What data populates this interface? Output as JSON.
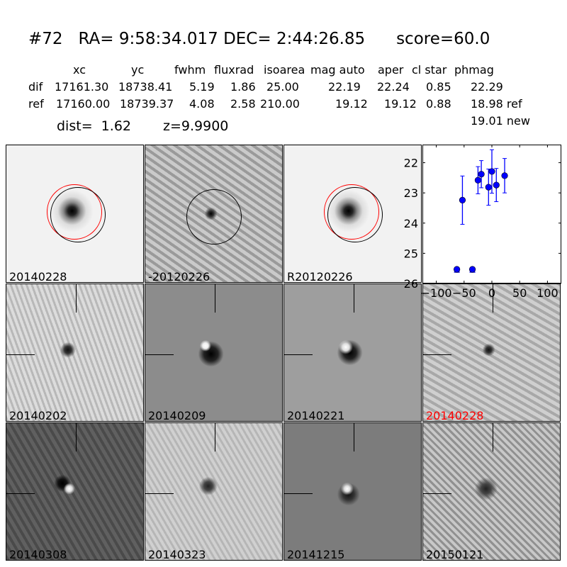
{
  "header": {
    "id": "#72",
    "ra_label": "RA=",
    "ra": "9:58:34.017",
    "dec_label": "DEC=",
    "dec": "2:44:26.85",
    "score": "score=60.0"
  },
  "table": {
    "columns": [
      "xc",
      "yc",
      "fwhm",
      "fluxrad",
      "isoarea",
      "mag auto",
      "aper",
      "cl star",
      "phmag"
    ],
    "rows": [
      {
        "label": "dif",
        "values": [
          "17161.30",
          "18738.41",
          "5.19",
          "1.86",
          "25.00",
          "22.19",
          "22.24",
          "0.85",
          "22.29"
        ]
      },
      {
        "label": "ref",
        "values": [
          "17160.00",
          "18739.37",
          "4.08",
          "2.58",
          "210.00",
          "19.12",
          "19.12",
          "0.88",
          "18.98 ref"
        ]
      }
    ],
    "extra": "19.01 new",
    "dist": "dist=  1.62",
    "z": "z=9.9900"
  },
  "stamps": [
    {
      "label": "20140228",
      "bg": "#f2f2f2"
    },
    {
      "label": "-20120226",
      "bg": "#b4b4b4"
    },
    {
      "label": "R20120226",
      "bg": "#f2f2f2"
    },
    {
      "label": "20140202",
      "bg": "#c6c6c6"
    },
    {
      "label": "20140209",
      "bg": "#8c8c8c"
    },
    {
      "label": "20140221",
      "bg": "#9e9e9e"
    },
    {
      "label": "20140228",
      "bg": "#b8b8b8",
      "color": "#ff0000"
    },
    {
      "label": "20140308",
      "bg": "#565656"
    },
    {
      "label": "20140323",
      "bg": "#c2c2c2"
    },
    {
      "label": "20141215",
      "bg": "#7c7c7c"
    },
    {
      "label": "20150121",
      "bg": "#aaaaaa"
    }
  ],
  "chart_data": {
    "type": "scatter",
    "xlim": [
      -125,
      125
    ],
    "ylim": [
      26,
      21.4
    ],
    "y_inverted": true,
    "xticks": [
      -100,
      -50,
      0,
      50,
      100
    ],
    "yticks": [
      22,
      23,
      24,
      25,
      26
    ],
    "color": "#0000ff",
    "points": [
      {
        "x": -53,
        "y": 23.24,
        "err": 0.8
      },
      {
        "x": -25,
        "y": 22.58,
        "err": 0.45
      },
      {
        "x": -19,
        "y": 22.38,
        "err": 0.45
      },
      {
        "x": -6,
        "y": 22.81,
        "err": 0.6
      },
      {
        "x": 0,
        "y": 22.29,
        "err": 0.72
      },
      {
        "x": 8,
        "y": 22.74,
        "err": 0.55
      },
      {
        "x": 23,
        "y": 22.43,
        "err": 0.57
      }
    ],
    "limits": [
      {
        "x": -63,
        "y": 25.53
      },
      {
        "x": -35,
        "y": 25.53
      }
    ]
  }
}
